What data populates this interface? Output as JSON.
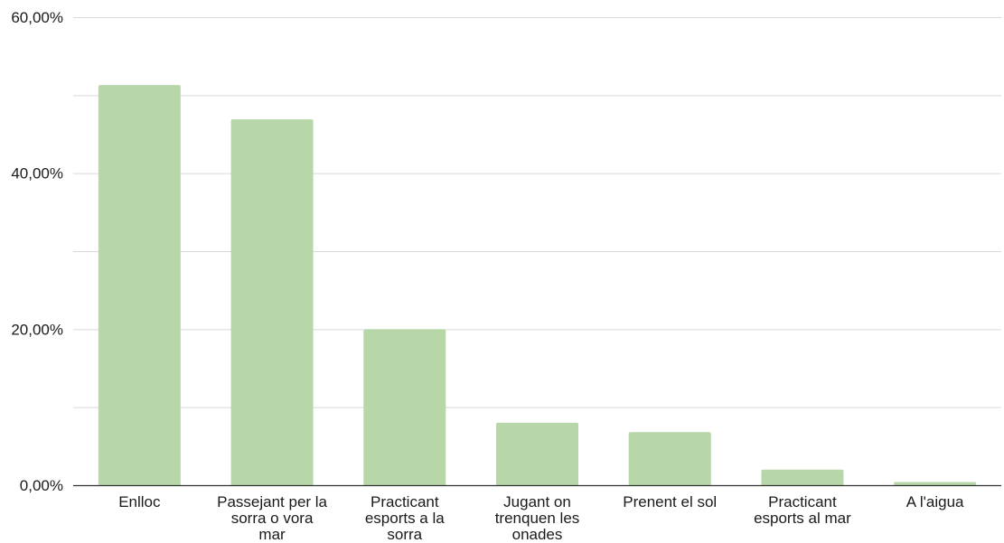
{
  "chart_data": {
    "type": "bar",
    "title": "",
    "xlabel": "",
    "ylabel": "",
    "categories": [
      [
        "Enlloc"
      ],
      [
        "Passejant per la",
        "sorra o vora",
        "mar"
      ],
      [
        "Practicant",
        "esports a la",
        "sorra"
      ],
      [
        "Jugant on",
        "trenquen les",
        "onades"
      ],
      [
        "Prenent el sol"
      ],
      [
        "Practicant",
        "esports al mar"
      ],
      [
        "A l'aigua"
      ]
    ],
    "values": [
      51.3,
      46.9,
      20.0,
      8.0,
      6.8,
      2.0,
      0.4
    ],
    "ylim": [
      0,
      60
    ],
    "yticks": [
      "0,00%",
      "20,00%",
      "40,00%",
      "60,00%"
    ],
    "ytick_values": [
      0,
      20,
      40,
      60
    ],
    "minor_grid": [
      10,
      30,
      50
    ],
    "grid": true,
    "legend": "none",
    "colors": {
      "bar": "#b7d7a8",
      "grid": "#d9d9d9",
      "axis": "#333333",
      "text": "#1a1a1a"
    }
  }
}
